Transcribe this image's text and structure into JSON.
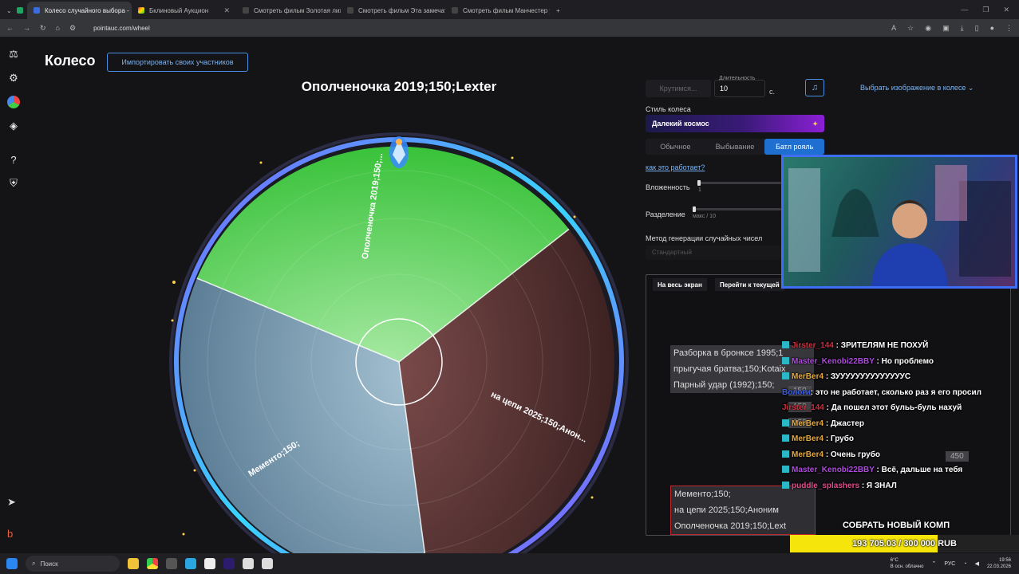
{
  "browser": {
    "tabs": [
      {
        "title": "Колесо случайного выбора - ",
        "active": true
      },
      {
        "title": "Бклиновый Аукцион",
        "active": false
      },
      {
        "title": "Смотреть фильм Золотая лихо",
        "active": false
      },
      {
        "title": "Смотреть фильм Эта замечате",
        "active": false
      },
      {
        "title": "Смотреть фильм Манчестер у",
        "active": false
      }
    ],
    "url": "pointauc.com/wheel"
  },
  "app": {
    "title": "Колесо",
    "import_button": "Импортировать своих участников",
    "winner": "Ополченочка 2019;150;Lexter"
  },
  "wheel": {
    "segments": [
      {
        "label": "Ополченочка 2019;150;...",
        "color": "#5fd35e"
      },
      {
        "label": "на цепи 2025;150;Анон...",
        "color": "#5c3232"
      },
      {
        "label": "Мементо;150;",
        "color": "#6c8ea6"
      }
    ]
  },
  "controls": {
    "spin_button": "Крутимся...",
    "duration_label": "Длительность",
    "duration_value": "10",
    "duration_unit": "с.",
    "image_select": "Выбрать изображение в колесе",
    "style_label": "Стиль колеса",
    "style_value": "Далекий космос",
    "modes": [
      "Обычное",
      "Выбывание",
      "Батл рояль"
    ],
    "active_mode": "Батл рояль",
    "how_link": "как это работает?",
    "nesting_label": "Вложенность",
    "nesting_value": "1",
    "split_label": "Разделение",
    "split_hint": "макс / 10",
    "rng_label": "Метод генерации случайных чисел",
    "rng_value": "Стандартный"
  },
  "panel": {
    "fullscreen": "На весь экран",
    "goto_current": "Перейти к текущей",
    "list_top": [
      "Разборка в бронксе 1995;1",
      "прыгучая братва;150;Kotaix",
      "Парный удар (1992);150;"
    ],
    "list_bottom": [
      "Мементо;150;",
      "на цепи 2025;150;Аноним",
      "Ополченочка 2019;150;Lext"
    ],
    "scores": [
      "150",
      "150",
      "450",
      "150"
    ]
  },
  "chat": [
    {
      "user": "Jirster_144",
      "color": "#d12b3c",
      "text": ": ЗРИТЕЛЯМ НЕ ПОХУЙ"
    },
    {
      "user": "Master_Kenobi22BBY",
      "color": "#b04ae0",
      "text": ": Но проблемо"
    },
    {
      "user": "MerBer4",
      "color": "#e8a93a",
      "text": ": ЗУУУУУУУУУУУУУУС"
    },
    {
      "user": "Вологи",
      "color": "#3c5de0",
      "text": ": это не работает, сколько раз я его просил"
    },
    {
      "user": "Jirster_144",
      "color": "#d12b3c",
      "text": ": Да пошел этот бульь-буль нахуй"
    },
    {
      "user": "MerBer4",
      "color": "#e8a93a",
      "text": ": Джастер"
    },
    {
      "user": "MerBer4",
      "color": "#e8a93a",
      "text": ": Грубо"
    },
    {
      "user": "MerBer4",
      "color": "#e8a93a",
      "text": ": Очень грубо"
    },
    {
      "user": "Master_Kenobi22BBY",
      "color": "#b04ae0",
      "text": ": Всё, дальше на тебя"
    },
    {
      "user": "puddle_splashers",
      "color": "#e04a8a",
      "text": ": Я ЗНАЛ"
    }
  ],
  "goal": {
    "title": "СОБРАТЬ НОВЫЙ КОМП",
    "text": "193 705.03 / 300 000 RUB",
    "progress": 0.6457
  },
  "taskbar": {
    "search": "Поиск",
    "weather_temp": "6°C",
    "weather_desc": "В осн. облачно",
    "lang": "РУС",
    "time": "19:56",
    "date": "22.03.2026"
  }
}
